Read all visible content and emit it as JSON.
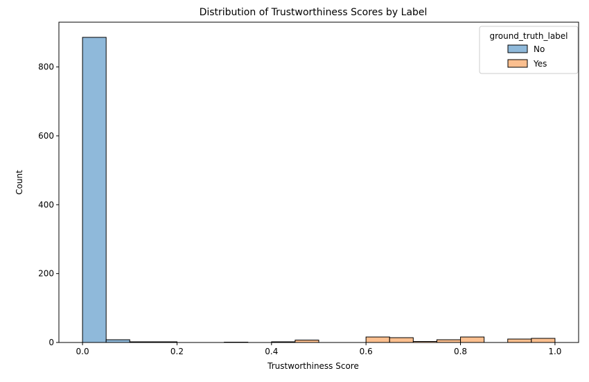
{
  "chart_data": {
    "type": "histogram",
    "title": "Distribution of Trustworthiness Scores by Label",
    "xlabel": "Trustworthiness Score",
    "ylabel": "Count",
    "xlim": [
      -0.05,
      1.05
    ],
    "ylim": [
      0,
      930
    ],
    "xticks": [
      0.0,
      0.2,
      0.4,
      0.6,
      0.8,
      1.0
    ],
    "xtick_labels": [
      "0.0",
      "0.2",
      "0.4",
      "0.6",
      "0.8",
      "1.0"
    ],
    "yticks": [
      0,
      200,
      400,
      600,
      800
    ],
    "ytick_labels": [
      "0",
      "200",
      "400",
      "600",
      "800"
    ],
    "grid": false,
    "legend": {
      "title": "ground_truth_label",
      "placement": "top-right"
    },
    "bin_edges": [
      0.0,
      0.05,
      0.1,
      0.15,
      0.2,
      0.25,
      0.3,
      0.35,
      0.4,
      0.45,
      0.5,
      0.55,
      0.6,
      0.65,
      0.7,
      0.75,
      0.8,
      0.85,
      0.9,
      0.95,
      1.0
    ],
    "series": [
      {
        "name": "No",
        "color": "#8fb9da",
        "edge_color": "#000000",
        "values": [
          886,
          8,
          2,
          2,
          0,
          0,
          1,
          0,
          0,
          0,
          0,
          0,
          0,
          0,
          2,
          0,
          0,
          0,
          0,
          0
        ]
      },
      {
        "name": "Yes",
        "color": "#fbbf8f",
        "edge_color": "#000000",
        "values": [
          0,
          0,
          0,
          0,
          0,
          0,
          0,
          0,
          2,
          7,
          0,
          0,
          16,
          14,
          3,
          8,
          16,
          0,
          10,
          12
        ]
      }
    ]
  }
}
